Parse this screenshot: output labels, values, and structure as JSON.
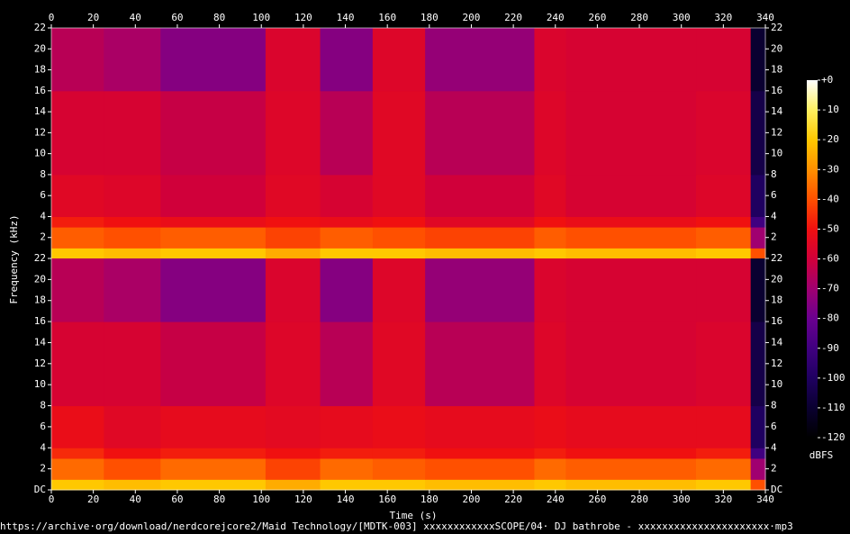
{
  "chart_data": {
    "type": "spectrogram",
    "xlabel": "Time (s)",
    "ylabel": "Frequency (kHz)",
    "colorbar_label": "dBFS",
    "footer": "https://archive·org/download/nerdcorejcore2/Maid Technology/[MDTK-003] xxxxxxxxxxxxSCOPE/04· DJ bathrobe - xxxxxxxxxxxxxxxxxxxxxx·mp3",
    "xlim": [
      0,
      340
    ],
    "xticks": [
      0,
      20,
      40,
      60,
      80,
      100,
      120,
      140,
      160,
      180,
      200,
      220,
      240,
      260,
      280,
      300,
      320,
      340
    ],
    "ylim": [
      0,
      22
    ],
    "yticks": [
      {
        "value": 0,
        "label": "DC"
      },
      2,
      4,
      6,
      8,
      10,
      12,
      14,
      16,
      18,
      20,
      22
    ],
    "clim": [
      -120,
      0
    ],
    "cticks": [
      {
        "value": 0,
        "label": "+0"
      },
      -10,
      -20,
      -30,
      -40,
      -50,
      -60,
      -70,
      -80,
      -90,
      -100,
      -110,
      -120
    ],
    "colormap": [
      {
        "value": -120,
        "color": "#000000"
      },
      {
        "value": -110,
        "color": "#0a0030"
      },
      {
        "value": -100,
        "color": "#1f0060"
      },
      {
        "value": -90,
        "color": "#400080"
      },
      {
        "value": -80,
        "color": "#6a0090"
      },
      {
        "value": -70,
        "color": "#a00070"
      },
      {
        "value": -60,
        "color": "#d0003a"
      },
      {
        "value": -50,
        "color": "#f01010"
      },
      {
        "value": -40,
        "color": "#ff5000"
      },
      {
        "value": -30,
        "color": "#ff9000"
      },
      {
        "value": -20,
        "color": "#ffc800"
      },
      {
        "value": -10,
        "color": "#fff060"
      },
      {
        "value": 0,
        "color": "#ffffff"
      }
    ],
    "time_edges": [
      0,
      25,
      52,
      102,
      128,
      153,
      178,
      230,
      245,
      307,
      333,
      340
    ],
    "freq_edges": [
      0,
      1,
      3,
      4,
      8,
      16,
      22
    ],
    "channels": [
      {
        "values": [
          [
            -20,
            -22,
            -20,
            -25,
            -20,
            -20,
            -22,
            -20,
            -22,
            -20,
            -40
          ],
          [
            -38,
            -40,
            -38,
            -42,
            -38,
            -40,
            -42,
            -38,
            -40,
            -38,
            -70
          ],
          [
            -48,
            -50,
            -52,
            -50,
            -52,
            -50,
            -55,
            -50,
            -52,
            -50,
            -90
          ],
          [
            -55,
            -56,
            -60,
            -55,
            -58,
            -55,
            -60,
            -55,
            -58,
            -56,
            -100
          ],
          [
            -58,
            -58,
            -62,
            -56,
            -65,
            -55,
            -65,
            -56,
            -58,
            -57,
            -105
          ],
          [
            -65,
            -68,
            -75,
            -57,
            -75,
            -56,
            -72,
            -57,
            -58,
            -58,
            -110
          ]
        ]
      },
      {
        "values": [
          [
            -20,
            -22,
            -20,
            -25,
            -20,
            -20,
            -22,
            -20,
            -22,
            -20,
            -40
          ],
          [
            -36,
            -40,
            -36,
            -42,
            -36,
            -38,
            -40,
            -36,
            -38,
            -36,
            -70
          ],
          [
            -46,
            -50,
            -48,
            -50,
            -48,
            -48,
            -50,
            -48,
            -50,
            -48,
            -90
          ],
          [
            -52,
            -55,
            -53,
            -54,
            -53,
            -52,
            -53,
            -52,
            -53,
            -53,
            -100
          ],
          [
            -58,
            -58,
            -62,
            -56,
            -65,
            -55,
            -65,
            -56,
            -58,
            -57,
            -105
          ],
          [
            -65,
            -68,
            -75,
            -57,
            -75,
            -56,
            -72,
            -57,
            -58,
            -58,
            -110
          ]
        ]
      }
    ]
  }
}
